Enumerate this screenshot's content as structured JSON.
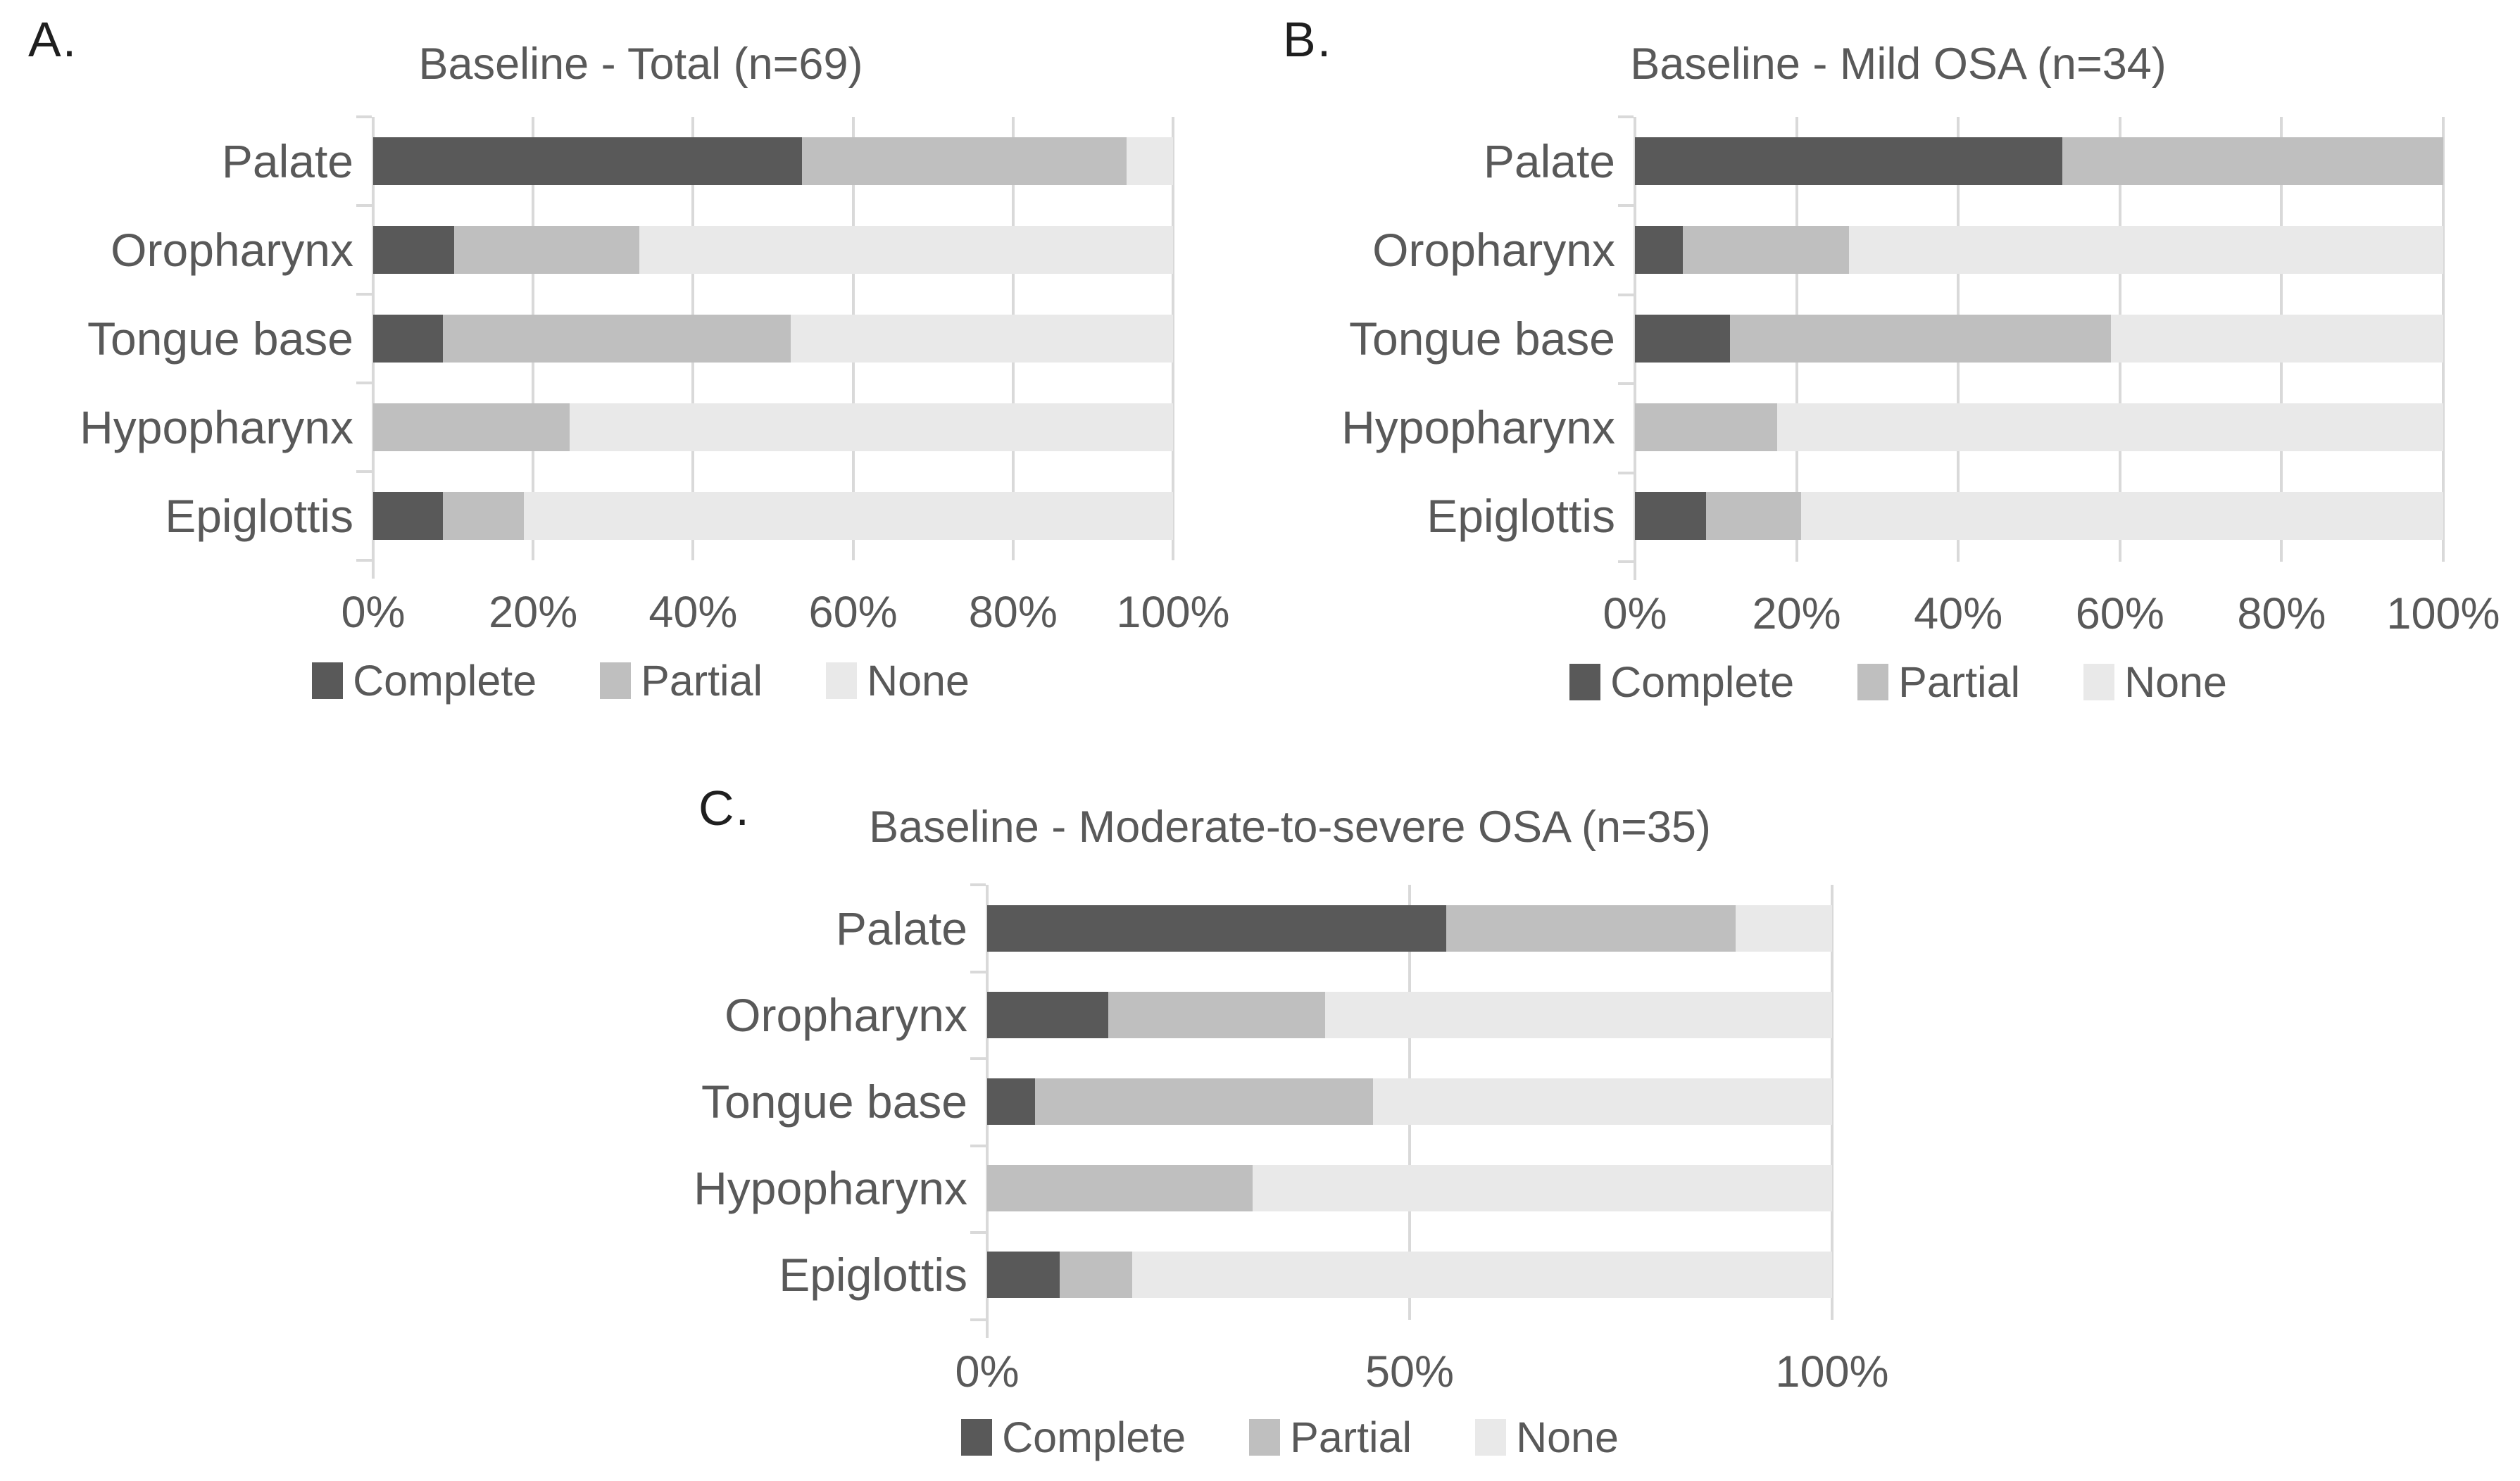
{
  "palette": {
    "complete": "#595959",
    "partial": "#bfbfbf",
    "none": "#e9e9e9",
    "gridline": "#d9d9d9",
    "text": "#595959",
    "panel_letter": "#1f1f1f"
  },
  "chart_data": [
    {
      "type": "bar",
      "orientation": "horizontal-stacked",
      "corner_label": "A.",
      "title": "Baseline - Total (n=69)",
      "categories": [
        "Palate",
        "Oropharynx",
        "Tongue base",
        "Hypopharynx",
        "Epiglottis"
      ],
      "series": [
        {
          "name": "Complete",
          "color": "#595959",
          "values": [
            53.6,
            10.1,
            8.7,
            0,
            8.7
          ]
        },
        {
          "name": "Partial",
          "color": "#bfbfbf",
          "values": [
            40.6,
            23.2,
            43.5,
            24.6,
            10.1
          ]
        },
        {
          "name": "None",
          "color": "#e9e9e9",
          "values": [
            5.8,
            66.7,
            47.8,
            75.4,
            81.2
          ]
        }
      ],
      "xlabel": "",
      "ylabel": "",
      "xlim": [
        0,
        100
      ],
      "x_tick_values": [
        0,
        20,
        40,
        60,
        80,
        100
      ],
      "x_tick_labels": [
        "0%",
        "20%",
        "40%",
        "60%",
        "80%",
        "100%"
      ],
      "grid": true,
      "legend_position": "bottom"
    },
    {
      "type": "bar",
      "orientation": "horizontal-stacked",
      "corner_label": "B.",
      "title": "Baseline - Mild OSA (n=34)",
      "categories": [
        "Palate",
        "Oropharynx",
        "Tongue base",
        "Hypopharynx",
        "Epiglottis"
      ],
      "series": [
        {
          "name": "Complete",
          "color": "#595959",
          "values": [
            52.9,
            5.9,
            11.8,
            0,
            8.8
          ]
        },
        {
          "name": "Partial",
          "color": "#bfbfbf",
          "values": [
            47.1,
            20.6,
            47.1,
            17.6,
            11.8
          ]
        },
        {
          "name": "None",
          "color": "#e9e9e9",
          "values": [
            0,
            73.5,
            41.1,
            82.4,
            79.4
          ]
        }
      ],
      "xlabel": "",
      "ylabel": "",
      "xlim": [
        0,
        100
      ],
      "x_tick_values": [
        0,
        20,
        40,
        60,
        80,
        100
      ],
      "x_tick_labels": [
        "0%",
        "20%",
        "40%",
        "60%",
        "80%",
        "100%"
      ],
      "grid": true,
      "legend_position": "bottom"
    },
    {
      "type": "bar",
      "orientation": "horizontal-stacked",
      "corner_label": "C.",
      "title": "Baseline - Moderate-to-severe OSA (n=35)",
      "categories": [
        "Palate",
        "Oropharynx",
        "Tongue base",
        "Hypopharynx",
        "Epiglottis"
      ],
      "series": [
        {
          "name": "Complete",
          "color": "#595959",
          "values": [
            54.3,
            14.3,
            5.7,
            0,
            8.6
          ]
        },
        {
          "name": "Partial",
          "color": "#bfbfbf",
          "values": [
            34.3,
            25.7,
            40.0,
            31.4,
            8.6
          ]
        },
        {
          "name": "None",
          "color": "#e9e9e9",
          "values": [
            11.4,
            60.0,
            54.3,
            68.6,
            82.8
          ]
        }
      ],
      "xlabel": "",
      "ylabel": "",
      "xlim": [
        0,
        100
      ],
      "x_tick_values": [
        0,
        50,
        100
      ],
      "x_tick_labels": [
        "0%",
        "50%",
        "100%"
      ],
      "grid": true,
      "legend_position": "bottom"
    }
  ]
}
